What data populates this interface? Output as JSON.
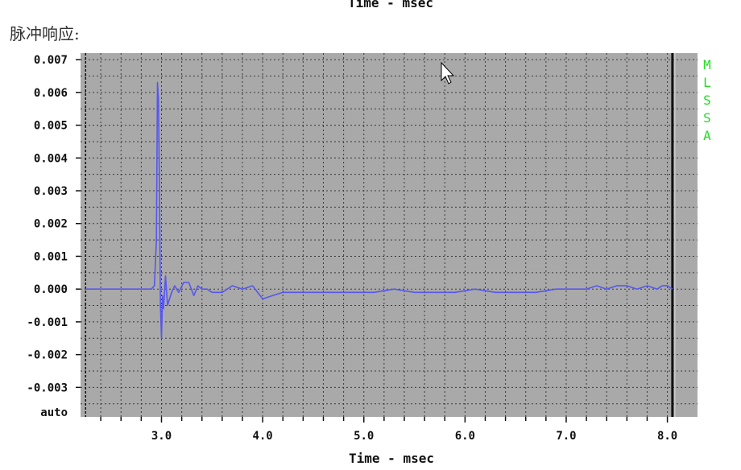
{
  "page": {
    "top_caption": "Time - msec",
    "section_title": "脉冲响应:"
  },
  "colors": {
    "plot_background": "#a9a9a9",
    "grid": "#3a3a3a",
    "trace": "#5757ee",
    "side_label": "#22dd22"
  },
  "icons": {
    "cursor": "mouse-pointer-icon"
  },
  "chart_data": {
    "type": "line",
    "title": "",
    "xlabel": "Time - msec",
    "ylabel": "",
    "xlim": [
      2.2,
      8.25
    ],
    "ylim": [
      -0.0039,
      0.0072
    ],
    "x_ticks": [
      {
        "value": 3.0,
        "label": "3.0"
      },
      {
        "value": 4.0,
        "label": "4.0"
      },
      {
        "value": 5.0,
        "label": "5.0"
      },
      {
        "value": 6.0,
        "label": "6.0"
      },
      {
        "value": 7.0,
        "label": "7.0"
      },
      {
        "value": 8.0,
        "label": "8.0"
      }
    ],
    "y_ticks": [
      {
        "value": 0.007,
        "label": "0.007"
      },
      {
        "value": 0.006,
        "label": "0.006"
      },
      {
        "value": 0.005,
        "label": "0.005"
      },
      {
        "value": 0.004,
        "label": "0.004"
      },
      {
        "value": 0.003,
        "label": "0.003"
      },
      {
        "value": 0.002,
        "label": "0.002"
      },
      {
        "value": 0.001,
        "label": "0.001"
      },
      {
        "value": 0.0,
        "label": "0.000"
      },
      {
        "value": -0.001,
        "label": "-0.001"
      },
      {
        "value": -0.002,
        "label": "-0.002"
      },
      {
        "value": -0.003,
        "label": "-0.003"
      }
    ],
    "y_bottom_label": "auto",
    "gate_markers": [
      2.25,
      8.05
    ],
    "side_label": "MLSSA",
    "grid": true,
    "series": [
      {
        "x": [
          2.25,
          2.8,
          2.9,
          2.93,
          2.95,
          2.96,
          2.97,
          2.98,
          2.99,
          3.0,
          3.01,
          3.02,
          3.04,
          3.06,
          3.08,
          3.1,
          3.13,
          3.17,
          3.22,
          3.27,
          3.32,
          3.36,
          3.4,
          3.45,
          3.5,
          3.6,
          3.7,
          3.8,
          3.9,
          4.0,
          4.1,
          4.2,
          4.3,
          4.5,
          4.7,
          4.9,
          5.1,
          5.3,
          5.5,
          5.7,
          5.9,
          6.1,
          6.3,
          6.5,
          6.7,
          6.9,
          7.0,
          7.1,
          7.2,
          7.3,
          7.4,
          7.5,
          7.6,
          7.7,
          7.8,
          7.9,
          7.95,
          8.0,
          8.05
        ],
        "y": [
          0.0,
          0.0,
          0.0,
          0.0001,
          0.0015,
          0.0063,
          0.0058,
          0.003,
          -0.0005,
          -0.0015,
          -0.0002,
          -0.0006,
          0.0004,
          -0.0005,
          -0.0003,
          -0.0001,
          0.0001,
          -0.0001,
          0.0002,
          0.0002,
          -0.0002,
          0.0001,
          0.0,
          0.0,
          -0.0001,
          -0.0001,
          0.0001,
          0.0,
          0.0001,
          -0.0003,
          -0.0002,
          -0.0001,
          -0.0001,
          -0.0001,
          -0.0001,
          -0.0001,
          -0.0001,
          0.0,
          -0.0001,
          -0.0001,
          -0.0001,
          0.0,
          -0.0001,
          -0.0001,
          -0.0001,
          0.0,
          0.0,
          0.0,
          0.0,
          0.0001,
          0.0,
          0.0001,
          0.0001,
          0.0,
          0.0001,
          0.0,
          0.0001,
          0.0001,
          0.0
        ]
      }
    ]
  }
}
